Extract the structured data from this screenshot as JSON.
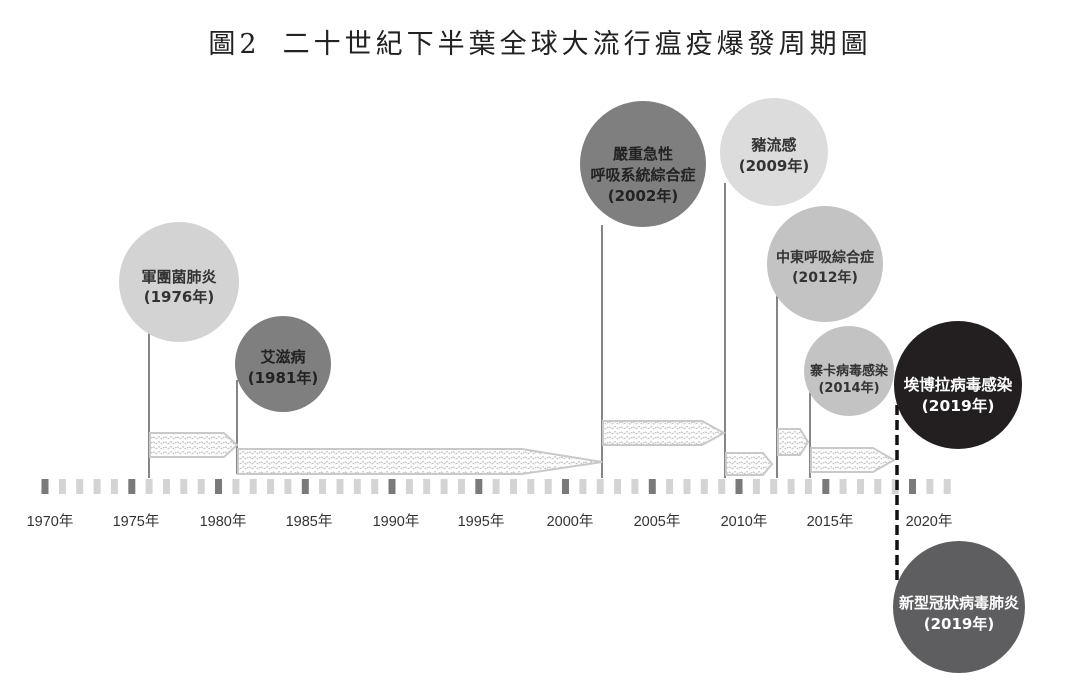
{
  "title": {
    "figure_no": "圖2",
    "text": "二十世紀下半葉全球大流行瘟疫爆發周期圖"
  },
  "axis": {
    "start_year": 1970,
    "end_year": 2022,
    "labels": [
      "1970年",
      "1975年",
      "1980年",
      "1985年",
      "1990年",
      "1995年",
      "2000年",
      "2005年",
      "2010年",
      "2015年",
      "2020年"
    ]
  },
  "colors": {
    "tick_major": "#7a7a7b",
    "tick_minor": "#d4d4d5",
    "bar_outline": "#c9c9ca",
    "light_circle": "#d3d3d4",
    "mid_circle": "#7f7f80",
    "dark_circle": "#5e5e60",
    "mers_circle": "#c3c3c4",
    "black_circle": "#231f20"
  },
  "events": [
    {
      "name": "軍團菌肺炎",
      "year_label": "(1976年)",
      "year": 1976
    },
    {
      "name": "艾滋病",
      "year_label": "(1981年)",
      "year": 1981
    },
    {
      "name_line1": "嚴重急性",
      "name_line2": "呼吸系統綜合症",
      "year_label": "(2002年)",
      "year": 2002
    },
    {
      "name": "豬流感",
      "year_label": "(2009年)",
      "year": 2009
    },
    {
      "name": "中東呼吸綜合症",
      "year_label": "(2012年)",
      "year": 2012
    },
    {
      "name": "寨卡病毒感染",
      "year_label": "(2014年)",
      "year": 2014
    },
    {
      "name": "埃博拉病毒感染",
      "year_label": "(2019年)",
      "year": 2019
    },
    {
      "name": "新型冠狀病毒肺炎",
      "year_label": "(2019年)",
      "year": 2019
    }
  ]
}
